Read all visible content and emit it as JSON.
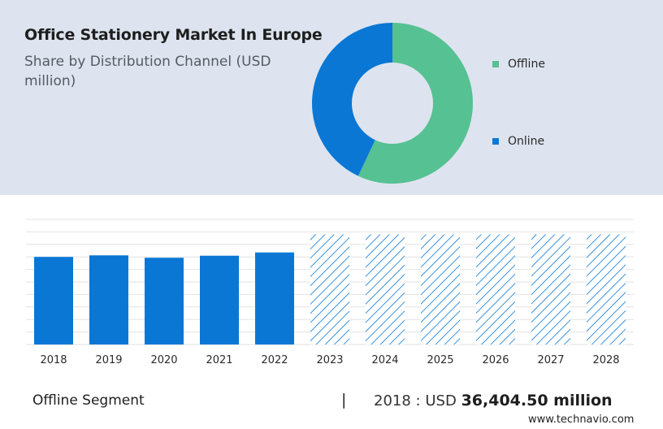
{
  "title": "Office Stationery Market In Europe",
  "subtitle": "Share by Distribution Channel (USD million)",
  "colors": {
    "offline": "#56c192",
    "online": "#0a77d5",
    "bar": "#0a77d5",
    "forecast_hatch": "#0a77d5",
    "grid": "#e2e2e2",
    "top_panel": "#dde4ef"
  },
  "chart_data": [
    {
      "type": "pie",
      "donut": true,
      "categories": [
        "Offline",
        "Online"
      ],
      "values": [
        57,
        43
      ],
      "legend_position": "right"
    },
    {
      "type": "bar",
      "categories": [
        "2018",
        "2019",
        "2020",
        "2021",
        "2022",
        "2023",
        "2024",
        "2025",
        "2026",
        "2027",
        "2028"
      ],
      "values": [
        36404.5,
        37050,
        36050,
        36900,
        38250,
        45750,
        45750,
        45750,
        45750,
        45750,
        45750
      ],
      "forecast_from": "2023",
      "ylim": [
        0,
        52000
      ],
      "grid": true
    }
  ],
  "footer": {
    "segment_label": "Offline Segment",
    "divider": "|",
    "year": "2018",
    "separator": ":",
    "currency": "USD",
    "value": "36,404.50 million"
  },
  "watermark": "www.technavio.com"
}
